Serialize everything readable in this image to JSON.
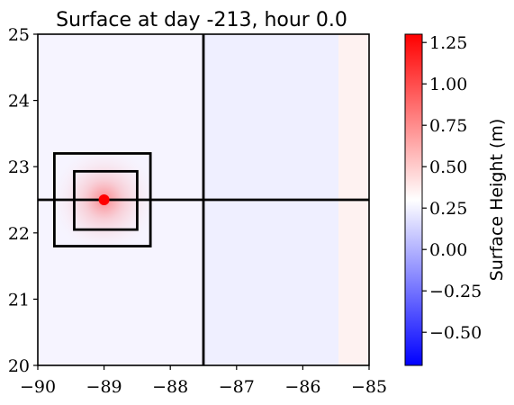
{
  "chart_data": {
    "type": "heatmap",
    "title": "Surface at day -213, hour 0.0",
    "xlabel": "",
    "ylabel": "",
    "xlim": [
      -90,
      -85
    ],
    "ylim": [
      20,
      25
    ],
    "x_ticks": [
      "−90",
      "−89",
      "−88",
      "−87",
      "−86",
      "−85"
    ],
    "y_ticks": [
      "20",
      "21",
      "22",
      "23",
      "24",
      "25"
    ],
    "x_tick_values": [
      -90,
      -89,
      -88,
      -87,
      -86,
      -85
    ],
    "y_tick_values": [
      20,
      21,
      22,
      23,
      24,
      25
    ],
    "colorbar": {
      "label": "Surface Height (m)",
      "range": [
        -0.7,
        1.3
      ],
      "colormap": "bwr",
      "ticks": [
        "−0.50",
        "−0.25",
        "0.00",
        "0.25",
        "0.50",
        "0.75",
        "1.00",
        "1.25"
      ],
      "tick_values": [
        -0.5,
        -0.25,
        0.0,
        0.25,
        0.5,
        0.75,
        1.0,
        1.25
      ]
    },
    "background_value": 0.3,
    "features": {
      "center_point": {
        "x": -89.0,
        "y": 22.5,
        "color": "#ff0000"
      },
      "vertical_line_x": -87.5,
      "horizontal_line_y": 22.5,
      "outer_box": {
        "x0": -89.75,
        "x1": -88.3,
        "y0": 21.8,
        "y1": 23.2
      },
      "inner_box": {
        "x0": -89.45,
        "x1": -88.5,
        "y0": 22.05,
        "y1": 22.93
      }
    }
  }
}
